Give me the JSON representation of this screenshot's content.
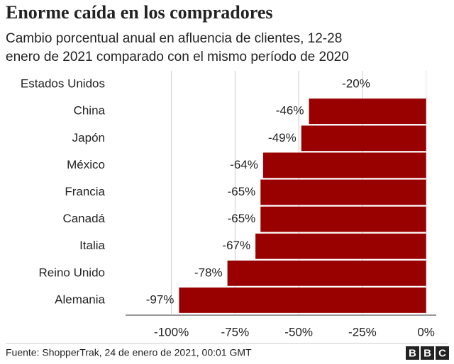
{
  "chart_data": {
    "type": "bar",
    "orientation": "horizontal",
    "title": "Enorme caída en los compradores",
    "subtitle": [
      "Cambio porcentual anual en afluencia de clientes, 12-28",
      "enero de 2021 comparado con el mismo período de 2020"
    ],
    "categories": [
      "Estados Unidos",
      "China",
      "Japón",
      "México",
      "Francia",
      "Canadá",
      "Italia",
      "Reino Unido",
      "Alemania"
    ],
    "values": [
      -20,
      -46,
      -49,
      -64,
      -65,
      -65,
      -67,
      -78,
      -97
    ],
    "value_labels": [
      "-20%",
      "-46%",
      "-49%",
      "-64%",
      "-65%",
      "-65%",
      "-67%",
      "-78%",
      "-97%"
    ],
    "colors": [
      "#ffffff",
      "#990000",
      "#990000",
      "#990000",
      "#990000",
      "#990000",
      "#990000",
      "#990000",
      "#990000"
    ],
    "xlim": [
      -118,
      4
    ],
    "xticks": [
      {
        "value": -100,
        "label": "-100%"
      },
      {
        "value": -75,
        "label": "-75%"
      },
      {
        "value": -50,
        "label": "-50%"
      },
      {
        "value": -25,
        "label": "-25%"
      },
      {
        "value": 0,
        "label": "0%"
      }
    ],
    "grid": true,
    "source": "Fuente: ShopperTrak, 24 de enero de 2021, 00:01 GMT",
    "logo": "BBC"
  }
}
